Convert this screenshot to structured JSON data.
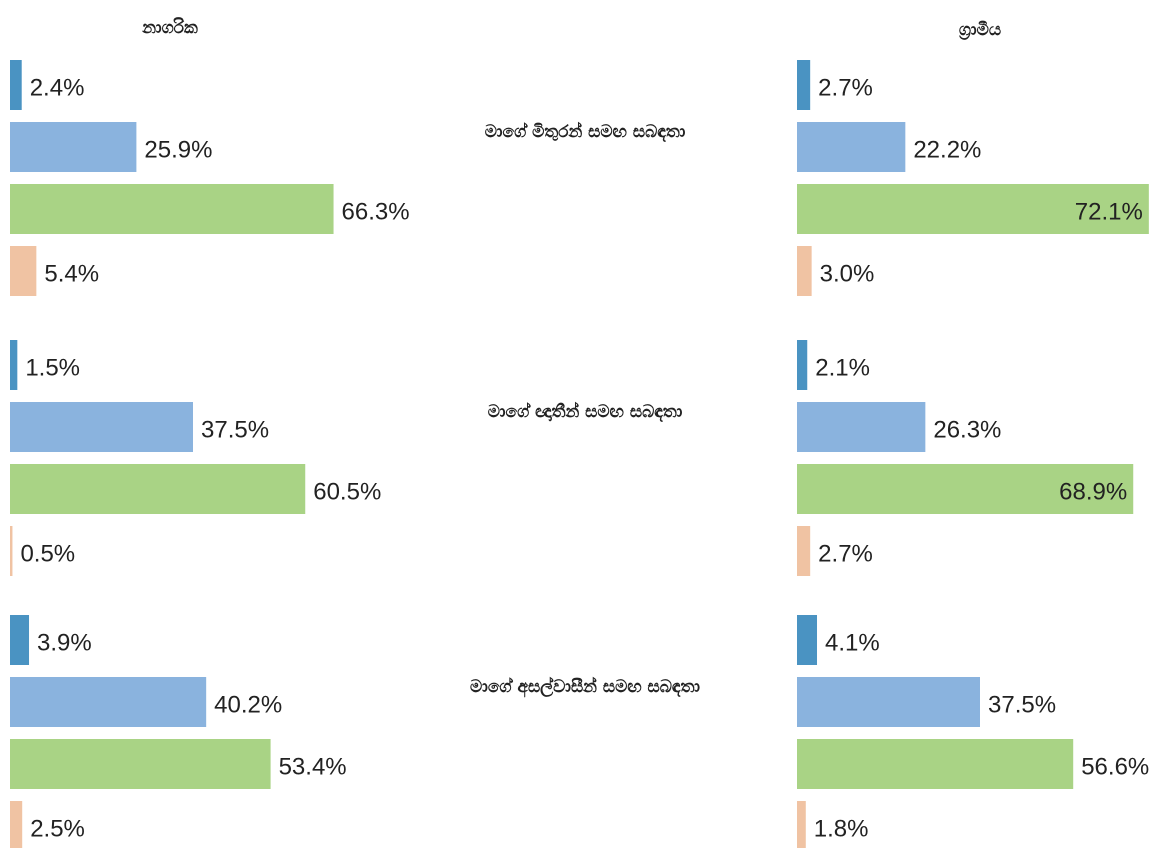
{
  "chart_data": {
    "type": "bar",
    "categories": [
      "මාගේ මිතුරන් සමඟ සබඳතා",
      "මාගේ ඥාතීන් සමඟ සබඳතා",
      "මාගේ අසල්වාසීන් සමඟ සබඳතා"
    ],
    "panels": [
      {
        "title": "නාගරික",
        "series": [
          {
            "color": "#4a93c2",
            "values": [
              2.4,
              1.5,
              3.9
            ],
            "value_labels": [
              "2.4%",
              "1.5%",
              "3.9%"
            ]
          },
          {
            "color": "#8ab3de",
            "values": [
              25.9,
              37.5,
              40.2
            ],
            "value_labels": [
              "25.9%",
              "37.5%",
              "40.2%"
            ]
          },
          {
            "color": "#a9d385",
            "values": [
              66.3,
              60.5,
              53.4
            ],
            "value_labels": [
              "66.3%",
              "60.5%",
              "53.4%"
            ]
          },
          {
            "color": "#f0c3a3",
            "values": [
              5.4,
              0.5,
              2.5
            ],
            "value_labels": [
              "5.4%",
              "0.5%",
              "2.5%"
            ]
          }
        ]
      },
      {
        "title": "ග්‍රාමීය",
        "series": [
          {
            "color": "#4a93c2",
            "values": [
              2.7,
              2.1,
              4.1
            ],
            "value_labels": [
              "2.7%",
              "2.1%",
              "4.1%"
            ]
          },
          {
            "color": "#8ab3de",
            "values": [
              22.2,
              26.3,
              37.5
            ],
            "value_labels": [
              "22.2%",
              "26.3%",
              "37.5%"
            ]
          },
          {
            "color": "#a9d385",
            "values": [
              72.1,
              68.9,
              56.6
            ],
            "value_labels": [
              "72.1%",
              "68.9%",
              "56.6%"
            ]
          },
          {
            "color": "#f0c3a3",
            "values": [
              3.0,
              2.7,
              1.8
            ],
            "value_labels": [
              "3.0%",
              "2.7%",
              "1.8%"
            ]
          }
        ]
      }
    ]
  }
}
